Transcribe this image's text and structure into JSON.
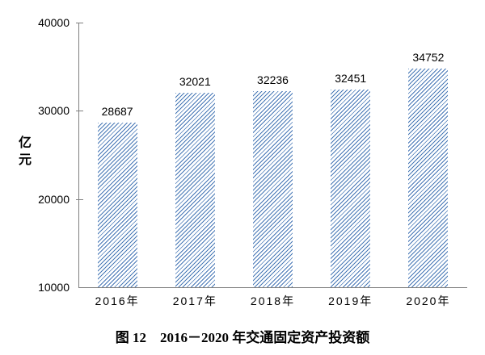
{
  "figure": {
    "caption": "图 12　2016－2020 年交通固定资产投资额"
  },
  "colors": {
    "bar_hatch_blue": "#4576b5",
    "axis_gray": "#7f7f7f",
    "text_black": "#000000"
  },
  "chart_data": {
    "type": "bar",
    "title": "图 12　2016－2020 年交通固定资产投资额",
    "categories": [
      "2016年",
      "2017年",
      "2018年",
      "2019年",
      "2020年"
    ],
    "values": [
      28687,
      32021,
      32236,
      32451,
      34752
    ],
    "data_labels": [
      "28687",
      "32021",
      "32236",
      "32451",
      "34752"
    ],
    "xlabel": "",
    "ylabel": "亿元",
    "ylim": [
      10000,
      40000
    ],
    "yticks": [
      10000,
      20000,
      30000,
      40000
    ],
    "ytick_labels": [
      "10000",
      "20000",
      "30000",
      "40000"
    ],
    "legend": null,
    "grid": false,
    "bar_style": "diagonal-hatch"
  }
}
